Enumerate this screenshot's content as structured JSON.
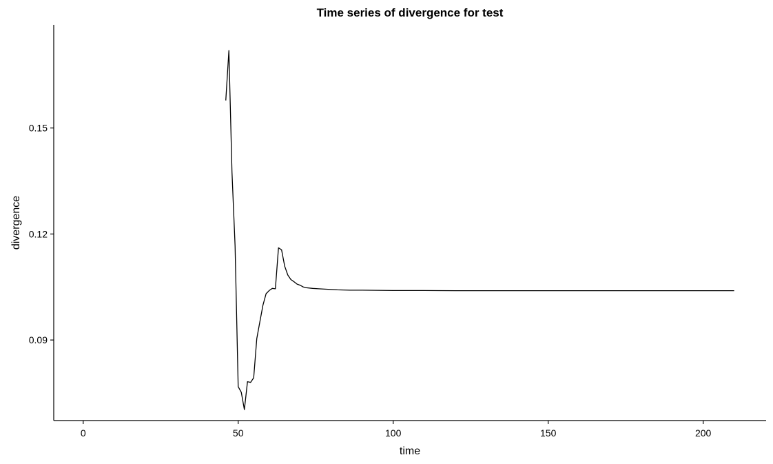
{
  "chart_data": {
    "type": "line",
    "title": "Time series of divergence for test",
    "xlabel": "time",
    "ylabel": "divergence",
    "xlim": [
      -9.5,
      220.3
    ],
    "ylim": [
      0.0672,
      0.1792
    ],
    "x_ticks": [
      0,
      50,
      100,
      150,
      200
    ],
    "x_tick_labels": [
      "0",
      "50",
      "100",
      "150",
      "200"
    ],
    "y_ticks": [
      0.09,
      0.12,
      0.15
    ],
    "y_tick_labels": [
      "0.09",
      "0.12",
      "0.15"
    ],
    "grid": false,
    "legend": "none",
    "line_color": "#000000",
    "series": [
      {
        "x": [
          46,
          47,
          48,
          49,
          50,
          51,
          52,
          53,
          54,
          55,
          56,
          57,
          58,
          59,
          60,
          61,
          62,
          63,
          64,
          65,
          66,
          67,
          68,
          69,
          70,
          71,
          72,
          74,
          76,
          78,
          80,
          82,
          84,
          86,
          88,
          90,
          95,
          100,
          110,
          120,
          130,
          140,
          150,
          160,
          170,
          180,
          190,
          200,
          210
        ],
        "y": [
          0.1578,
          0.1719,
          0.1375,
          0.1166,
          0.0768,
          0.0752,
          0.0703,
          0.0782,
          0.078,
          0.0793,
          0.0904,
          0.0952,
          0.0999,
          0.1031,
          0.104,
          0.1046,
          0.1045,
          0.1161,
          0.1155,
          0.1109,
          0.1084,
          0.1071,
          0.1065,
          0.1058,
          0.1055,
          0.105,
          0.1048,
          0.1046,
          0.1045,
          0.1044,
          0.1043,
          0.1042,
          0.10415,
          0.1041,
          0.1041,
          0.1041,
          0.10405,
          0.104,
          0.104,
          0.10395,
          0.10395,
          0.10395,
          0.10395,
          0.10395,
          0.10395,
          0.10395,
          0.10395,
          0.10395,
          0.10395
        ]
      }
    ]
  }
}
